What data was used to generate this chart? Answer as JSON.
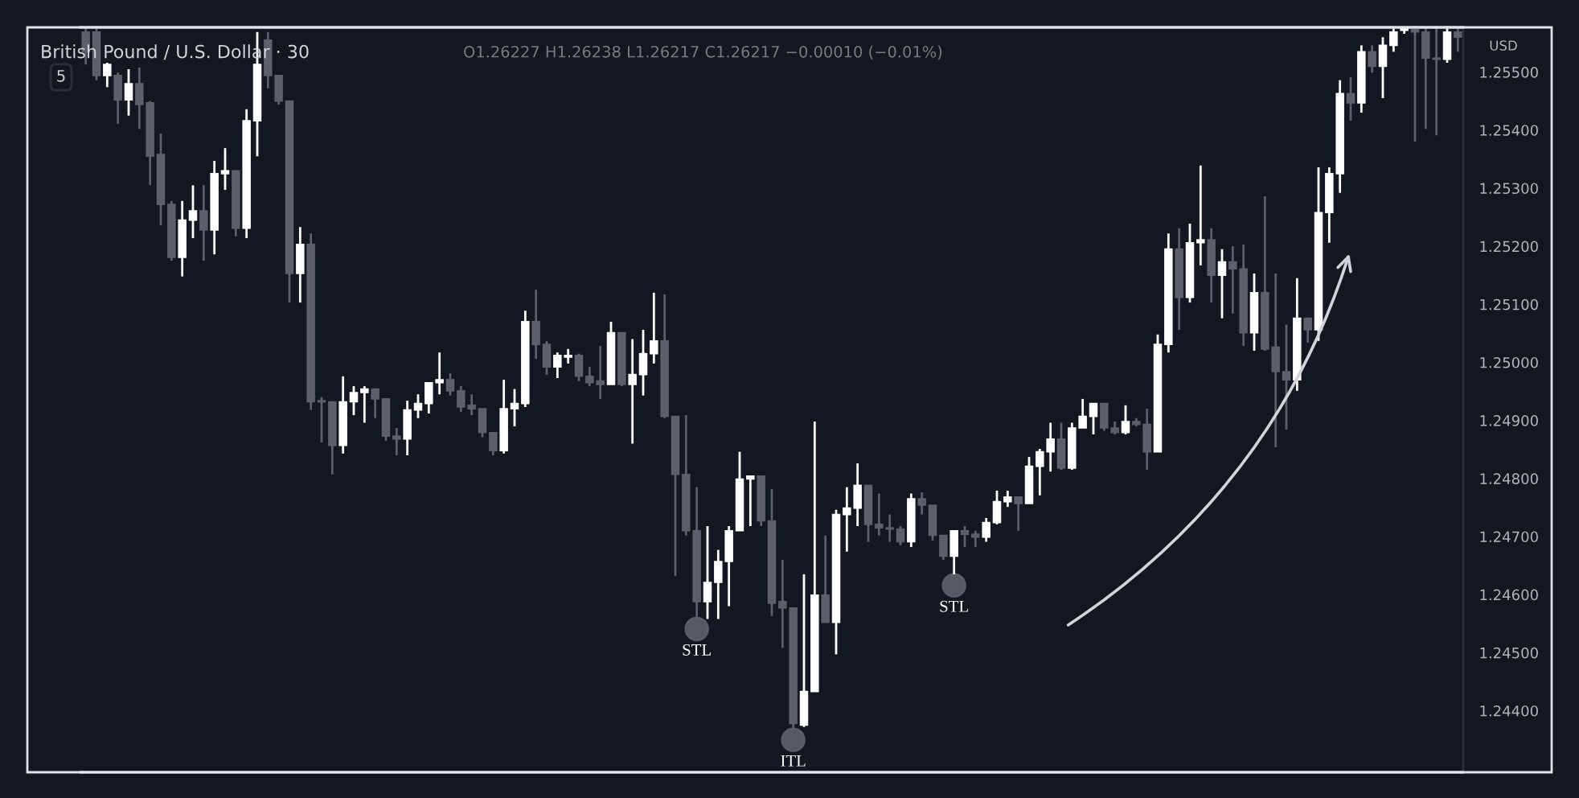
{
  "chart_data": {
    "type": "candlestick",
    "title": "British Pound / U.S. Dollar · 30",
    "categories": [
      null,
      null,
      null,
      null,
      null,
      null,
      null,
      null,
      null,
      null,
      null,
      null,
      null,
      null,
      null,
      null,
      null,
      null,
      null,
      null,
      null,
      null,
      null,
      null,
      null,
      null,
      null,
      null,
      null,
      null,
      null,
      null,
      null,
      null,
      null,
      null,
      null,
      null,
      null,
      null,
      null,
      null,
      null,
      null,
      null,
      null,
      null,
      null,
      null,
      null,
      null,
      null,
      null,
      null,
      null,
      null,
      null,
      null,
      null,
      null,
      null,
      null,
      null,
      null,
      null,
      null,
      null,
      null,
      null,
      null,
      null,
      null,
      null,
      null,
      null,
      null,
      null,
      null,
      null,
      null,
      null,
      null,
      null,
      null,
      null,
      null,
      null,
      null,
      null,
      null,
      null,
      null,
      null,
      null,
      null,
      null,
      null,
      null,
      null,
      null,
      null,
      null,
      null,
      null,
      null,
      null,
      null,
      null,
      null,
      null,
      null,
      null,
      null,
      null,
      null,
      null,
      null,
      null,
      null,
      null,
      null,
      null,
      null,
      null,
      null,
      null,
      null,
      null,
      null
    ],
    "ohlc": [
      [
        1.25569,
        1.25575,
        1.25513,
        1.25535
      ],
      [
        1.25569,
        1.25575,
        1.25486,
        1.25494
      ],
      [
        1.25494,
        1.25516,
        1.25474,
        1.25513
      ],
      [
        1.25494,
        1.25499,
        1.25411,
        1.25452
      ],
      [
        1.25452,
        1.25505,
        1.25425,
        1.2548
      ],
      [
        1.2548,
        1.25508,
        1.25402,
        1.25444
      ],
      [
        1.25447,
        1.2545,
        1.25305,
        1.25355
      ],
      [
        1.25358,
        1.25394,
        1.25236,
        1.25272
      ],
      [
        1.25272,
        1.25278,
        1.25175,
        1.25181
      ],
      [
        1.25181,
        1.25278,
        1.25148,
        1.25245
      ],
      [
        1.25245,
        1.25305,
        1.25214,
        1.25261
      ],
      [
        1.25261,
        1.25305,
        1.25175,
        1.25228
      ],
      [
        1.25228,
        1.25347,
        1.25186,
        1.25325
      ],
      [
        1.25325,
        1.25369,
        1.25297,
        1.2533
      ],
      [
        1.2533,
        1.2533,
        1.25217,
        1.25231
      ],
      [
        1.25231,
        1.25436,
        1.25214,
        1.25416
      ],
      [
        1.25416,
        1.25569,
        1.25355,
        1.25513
      ],
      [
        1.25555,
        1.25569,
        1.25472,
        1.25494
      ],
      [
        1.25494,
        1.25494,
        1.25444,
        1.2545
      ],
      [
        1.2545,
        1.2545,
        1.25103,
        1.25153
      ],
      [
        1.25153,
        1.25233,
        1.25103,
        1.25203
      ],
      [
        1.25203,
        1.25222,
        1.24918,
        1.24932
      ],
      [
        1.24934,
        1.2494,
        1.24862,
        1.24932
      ],
      [
        1.24932,
        1.24932,
        1.24807,
        1.24857
      ],
      [
        1.24857,
        1.24976,
        1.24843,
        1.24932
      ],
      [
        1.24932,
        1.24959,
        1.24909,
        1.24948
      ],
      [
        1.24948,
        1.24959,
        1.24896,
        1.24954
      ],
      [
        1.24954,
        1.24954,
        1.24904,
        1.24937
      ],
      [
        1.24937,
        1.24937,
        1.24865,
        1.24873
      ],
      [
        1.24873,
        1.24887,
        1.2484,
        1.24868
      ],
      [
        1.24868,
        1.24934,
        1.2484,
        1.24918
      ],
      [
        1.24918,
        1.24945,
        1.24904,
        1.24929
      ],
      [
        1.24929,
        1.24965,
        1.24912,
        1.24965
      ],
      [
        1.24965,
        1.25017,
        1.24945,
        1.2497
      ],
      [
        1.2497,
        1.24981,
        1.24943,
        1.24951
      ],
      [
        1.24951,
        1.24959,
        1.24915,
        1.24923
      ],
      [
        1.24926,
        1.24945,
        1.24909,
        1.2492
      ],
      [
        1.2492,
        1.2492,
        1.24871,
        1.24879
      ],
      [
        1.24879,
        1.24879,
        1.2484,
        1.24848
      ],
      [
        1.24848,
        1.2497,
        1.24843,
        1.2492
      ],
      [
        1.2492,
        1.24954,
        1.2489,
        1.24929
      ],
      [
        1.24929,
        1.25089,
        1.24923,
        1.2507
      ],
      [
        1.2507,
        1.25125,
        1.25006,
        1.25031
      ],
      [
        1.25031,
        1.25037,
        1.24979,
        1.24992
      ],
      [
        1.24992,
        1.25017,
        1.24973,
        1.25012
      ],
      [
        1.25009,
        1.25023,
        1.24998,
        1.25012
      ],
      [
        1.25012,
        1.25015,
        1.24968,
        1.24976
      ],
      [
        1.24976,
        1.24992,
        1.24959,
        1.24965
      ],
      [
        1.24968,
        1.25028,
        1.24937,
        1.24962
      ],
      [
        1.24962,
        1.2507,
        1.24962,
        1.25051
      ],
      [
        1.25051,
        1.25051,
        1.24959,
        1.24962
      ],
      [
        1.24962,
        1.2504,
        1.2486,
        1.24979
      ],
      [
        1.24979,
        1.25056,
        1.24943,
        1.25015
      ],
      [
        1.25015,
        1.2512,
        1.24998,
        1.25037
      ],
      [
        1.25037,
        1.25117,
        1.24904,
        1.24907
      ],
      [
        1.24907,
        1.24907,
        1.24632,
        1.24807
      ],
      [
        1.24807,
        1.24909,
        1.24702,
        1.2471
      ],
      [
        1.2471,
        1.24785,
        1.2456,
        1.24588
      ],
      [
        1.24588,
        1.24718,
        1.24558,
        1.24621
      ],
      [
        1.24621,
        1.24677,
        1.24558,
        1.24657
      ],
      [
        1.24657,
        1.24718,
        1.2458,
        1.2471
      ],
      [
        1.2471,
        1.24846,
        1.2471,
        1.24799
      ],
      [
        1.24799,
        1.24804,
        1.24718,
        1.24804
      ],
      [
        1.24804,
        1.24804,
        1.24718,
        1.24727
      ],
      [
        1.24727,
        1.24782,
        1.24563,
        1.24585
      ],
      [
        1.24588,
        1.2466,
        1.24508,
        1.24577
      ],
      [
        1.24577,
        1.24577,
        1.24369,
        1.24378
      ],
      [
        1.24375,
        1.24635,
        1.24372,
        1.24433
      ],
      [
        1.24433,
        1.24898,
        1.24433,
        1.24599
      ],
      [
        1.24599,
        1.24702,
        1.24552,
        1.24552
      ],
      [
        1.24552,
        1.24746,
        1.24497,
        1.24738
      ],
      [
        1.24738,
        1.24785,
        1.24674,
        1.24749
      ],
      [
        1.24749,
        1.24826,
        1.24718,
        1.24788
      ],
      [
        1.24788,
        1.24788,
        1.24691,
        1.24721
      ],
      [
        1.24721,
        1.24774,
        1.24702,
        1.24715
      ],
      [
        1.24715,
        1.24738,
        1.24691,
        1.24713
      ],
      [
        1.24713,
        1.24718,
        1.24685,
        1.24691
      ],
      [
        1.24691,
        1.24774,
        1.24682,
        1.24765
      ],
      [
        1.24765,
        1.24776,
        1.24738,
        1.24754
      ],
      [
        1.24754,
        1.24754,
        1.24693,
        1.24702
      ],
      [
        1.24702,
        1.24702,
        1.2466,
        1.24666
      ],
      [
        1.24666,
        1.2471,
        1.24635,
        1.2471
      ],
      [
        1.2471,
        1.24718,
        1.24682,
        1.24704
      ],
      [
        1.24704,
        1.2471,
        1.24682,
        1.24699
      ],
      [
        1.24699,
        1.24732,
        1.24691,
        1.24724
      ],
      [
        1.24724,
        1.24779,
        1.24721,
        1.2476
      ],
      [
        1.2476,
        1.24779,
        1.24751,
        1.24768
      ],
      [
        1.24768,
        1.24768,
        1.2471,
        1.24757
      ],
      [
        1.24757,
        1.24837,
        1.24757,
        1.24821
      ],
      [
        1.24821,
        1.24851,
        1.24771,
        1.24846
      ],
      [
        1.24846,
        1.24896,
        1.24812,
        1.24868
      ],
      [
        1.24868,
        1.24896,
        1.24815,
        1.24818
      ],
      [
        1.24818,
        1.24896,
        1.24815,
        1.24887
      ],
      [
        1.24887,
        1.24937,
        1.24887,
        1.24907
      ],
      [
        1.24907,
        1.24929,
        1.24876,
        1.24929
      ],
      [
        1.24929,
        1.24929,
        1.24882,
        1.24887
      ],
      [
        1.24887,
        1.24898,
        1.24876,
        1.24879
      ],
      [
        1.24879,
        1.24926,
        1.24876,
        1.24898
      ],
      [
        1.24898,
        1.24904,
        1.2489,
        1.24893
      ],
      [
        1.24893,
        1.2492,
        1.24815,
        1.24846
      ],
      [
        1.24846,
        1.25048,
        1.24846,
        1.25031
      ],
      [
        1.25031,
        1.25222,
        1.25017,
        1.25195
      ],
      [
        1.25195,
        1.25231,
        1.25056,
        1.25112
      ],
      [
        1.25112,
        1.25239,
        1.25103,
        1.25206
      ],
      [
        1.25206,
        1.25339,
        1.25167,
        1.25211
      ],
      [
        1.25211,
        1.25231,
        1.25103,
        1.2515
      ],
      [
        1.2515,
        1.25195,
        1.25076,
        1.25173
      ],
      [
        1.25173,
        1.252,
        1.25084,
        1.25161
      ],
      [
        1.25161,
        1.25203,
        1.25028,
        1.25051
      ],
      [
        1.25051,
        1.25153,
        1.2502,
        1.2512
      ],
      [
        1.2512,
        1.25286,
        1.2502,
        1.25023
      ],
      [
        1.25026,
        1.25153,
        1.24854,
        1.24984
      ],
      [
        1.24984,
        1.25065,
        1.24884,
        1.2497
      ],
      [
        1.2497,
        1.25145,
        1.24951,
        1.25076
      ],
      [
        1.25076,
        1.25076,
        1.25034,
        1.25056
      ],
      [
        1.25056,
        1.25336,
        1.25037,
        1.25258
      ],
      [
        1.25258,
        1.25336,
        1.25206,
        1.25325
      ],
      [
        1.25325,
        1.25486,
        1.25292,
        1.25463
      ],
      [
        1.25463,
        1.25491,
        1.25416,
        1.25447
      ],
      [
        1.25447,
        1.25546,
        1.2543,
        1.25535
      ],
      [
        1.25535,
        1.25546,
        1.25499,
        1.2551
      ],
      [
        1.2551,
        1.2556,
        1.25455,
        1.25546
      ],
      [
        1.25546,
        1.25575,
        1.25535,
        1.25569
      ],
      [
        1.25572,
        1.25575,
        1.25566,
        1.25575
      ],
      [
        1.25575,
        1.25575,
        1.2538,
        1.25569
      ],
      [
        1.25569,
        1.25575,
        1.25402,
        1.25524
      ],
      [
        1.25524,
        1.25575,
        1.25391,
        1.25522
      ],
      [
        1.25522,
        1.25575,
        1.25516,
        1.25569
      ],
      [
        1.25569,
        1.25575,
        1.25535,
        1.2556
      ]
    ],
    "colors": [
      "#5d606b",
      "#5d606b",
      "#ffffff",
      "#5d606b",
      "#ffffff",
      "#5d606b",
      "#5d606b",
      "#5d606b",
      "#5d606b",
      "#ffffff",
      "#ffffff",
      "#5d606b",
      "#ffffff",
      "#ffffff",
      "#5d606b",
      "#ffffff",
      "#ffffff",
      "#5d606b",
      "#5d606b",
      "#5d606b",
      "#ffffff",
      "#5d606b",
      "#5d606b",
      "#5d606b",
      "#ffffff",
      "#ffffff",
      "#ffffff",
      "#5d606b",
      "#5d606b",
      "#5d606b",
      "#ffffff",
      "#ffffff",
      "#ffffff",
      "#ffffff",
      "#5d606b",
      "#5d606b",
      "#5d606b",
      "#5d606b",
      "#5d606b",
      "#ffffff",
      "#ffffff",
      "#ffffff",
      "#5d606b",
      "#5d606b",
      "#ffffff",
      "#ffffff",
      "#5d606b",
      "#5d606b",
      "#5d606b",
      "#ffffff",
      "#5d606b",
      "#ffffff",
      "#ffffff",
      "#ffffff",
      "#5d606b",
      "#5d606b",
      "#5d606b",
      "#5d606b",
      "#ffffff",
      "#ffffff",
      "#ffffff",
      "#ffffff",
      "#ffffff",
      "#5d606b",
      "#5d606b",
      "#5d606b",
      "#5d606b",
      "#ffffff",
      "#ffffff",
      "#5d606b",
      "#ffffff",
      "#ffffff",
      "#ffffff",
      "#5d606b",
      "#5d606b",
      "#5d606b",
      "#5d606b",
      "#ffffff",
      "#5d606b",
      "#5d606b",
      "#5d606b",
      "#ffffff",
      "#5d606b",
      "#5d606b",
      "#ffffff",
      "#ffffff",
      "#ffffff",
      "#5d606b",
      "#ffffff",
      "#ffffff",
      "#ffffff",
      "#5d606b",
      "#ffffff",
      "#ffffff",
      "#ffffff",
      "#5d606b",
      "#5d606b",
      "#ffffff",
      "#5d606b",
      "#5d606b",
      "#ffffff",
      "#ffffff",
      "#5d606b",
      "#ffffff",
      "#ffffff",
      "#5d606b",
      "#ffffff",
      "#5d606b",
      "#5d606b",
      "#ffffff",
      "#5d606b",
      "#5d606b",
      "#5d606b",
      "#ffffff",
      "#5d606b",
      "#ffffff",
      "#ffffff",
      "#ffffff",
      "#5d606b",
      "#ffffff",
      "#5d606b",
      "#ffffff",
      "#ffffff",
      "#ffffff",
      "#5d606b",
      "#5d606b",
      "#5d606b",
      "#ffffff",
      "#5d606b"
    ],
    "ylim": [
      1.24294,
      1.25577
    ],
    "yticks": [
      {
        "value": 1.244,
        "label": "1.24400"
      },
      {
        "value": 1.245,
        "label": "1.24500"
      },
      {
        "value": 1.246,
        "label": "1.24600"
      },
      {
        "value": 1.247,
        "label": "1.24700"
      },
      {
        "value": 1.248,
        "label": "1.24800"
      },
      {
        "value": 1.249,
        "label": "1.24900"
      },
      {
        "value": 1.25,
        "label": "1.25000"
      },
      {
        "value": 1.251,
        "label": "1.25100"
      },
      {
        "value": 1.252,
        "label": "1.25200"
      },
      {
        "value": 1.253,
        "label": "1.25300"
      },
      {
        "value": 1.254,
        "label": "1.25400"
      },
      {
        "value": 1.255,
        "label": "1.25500"
      }
    ],
    "tick_labels": "y",
    "annotations": [
      {
        "text": "STL",
        "y": 1.2456
      },
      {
        "text": "ITL",
        "y": 1.24369
      },
      {
        "text": "STL",
        "y": 1.24635
      },
      "O1.26227 H1.26238 L1.26217 C1.26217 −0.00010 (−0.01%)",
      "5",
      "USD"
    ]
  }
}
